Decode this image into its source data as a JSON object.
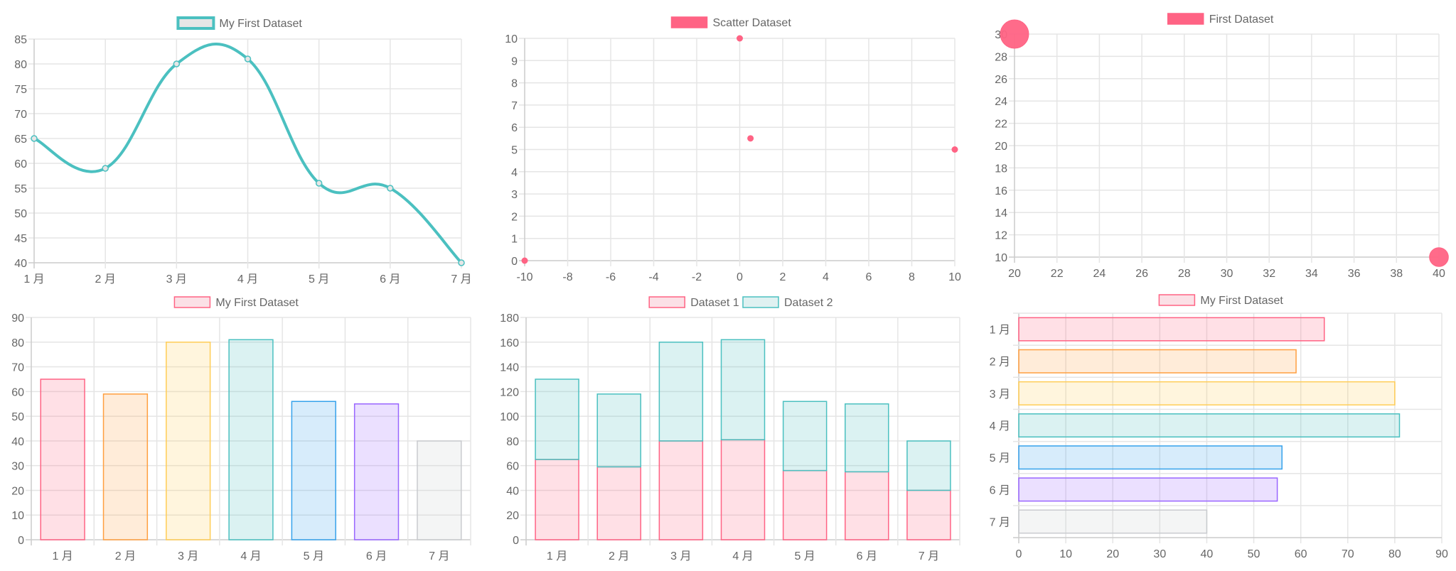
{
  "colors": {
    "red": "#ff6384",
    "orange": "#ff9f40",
    "yellow": "#ffcd56",
    "teal": "#4bc0c0",
    "blue": "#36a2eb",
    "purple": "#9966ff",
    "grey": "#c9cbcf",
    "grid": "#e5e5e5",
    "text": "#666666"
  },
  "chart_data": [
    {
      "type": "line",
      "legend": [
        {
          "label": "My First Dataset",
          "fill": "#e6e6e6",
          "stroke": "#4bc0c0"
        }
      ],
      "categories": [
        "1 月",
        "2 月",
        "3 月",
        "4 月",
        "5 月",
        "6 月",
        "7 月"
      ],
      "series": [
        {
          "name": "My First Dataset",
          "values": [
            65,
            59,
            80,
            81,
            56,
            55,
            40
          ],
          "color": "#4bc0c0"
        }
      ],
      "ylim": [
        40,
        85
      ],
      "yticks": [
        "85",
        "80",
        "75",
        "70",
        "65",
        "60",
        "55",
        "50",
        "45",
        "40"
      ],
      "grid": true,
      "legend_position": "top"
    },
    {
      "type": "scatter",
      "legend": [
        {
          "label": "Scatter Dataset",
          "fill": "#ff6384",
          "stroke": "#ff6384"
        }
      ],
      "series": [
        {
          "name": "Scatter Dataset",
          "points": [
            [
              -10,
              0
            ],
            [
              0,
              10
            ],
            [
              0.5,
              5.5
            ],
            [
              10,
              5
            ]
          ],
          "color": "#ff6384"
        }
      ],
      "xlim": [
        -10,
        10
      ],
      "ylim": [
        0,
        10
      ],
      "xticks": [
        "-10",
        "-8",
        "-6",
        "-4",
        "-2",
        "0",
        "2",
        "4",
        "6",
        "8",
        "10"
      ],
      "yticks": [
        "10",
        "9",
        "8",
        "7",
        "6",
        "5",
        "4",
        "3",
        "2",
        "1",
        "0"
      ],
      "grid": true,
      "legend_position": "top"
    },
    {
      "type": "bubble",
      "legend": [
        {
          "label": "First Dataset",
          "fill": "#ff6384",
          "stroke": "#ff6384"
        }
      ],
      "series": [
        {
          "name": "First Dataset",
          "points": [
            {
              "x": 20,
              "y": 30,
              "r": 15
            },
            {
              "x": 40,
              "y": 10,
              "r": 10
            }
          ],
          "color": "#ff6384"
        }
      ],
      "xlim": [
        20,
        40
      ],
      "ylim": [
        10,
        30
      ],
      "xticks": [
        "20",
        "22",
        "24",
        "26",
        "28",
        "30",
        "32",
        "34",
        "36",
        "38",
        "40"
      ],
      "yticks": [
        "30",
        "28",
        "26",
        "24",
        "22",
        "20",
        "18",
        "16",
        "14",
        "12",
        "10"
      ],
      "grid": true,
      "legend_position": "top"
    },
    {
      "type": "bar",
      "legend": [
        {
          "label": "My First Dataset",
          "fill": "#fbe0e6",
          "stroke": "#ff6384"
        }
      ],
      "categories": [
        "1 月",
        "2 月",
        "3 月",
        "4 月",
        "5 月",
        "6 月",
        "7 月"
      ],
      "series": [
        {
          "name": "My First Dataset",
          "values": [
            65,
            59,
            80,
            81,
            56,
            55,
            40
          ],
          "colors": [
            "#ff6384",
            "#ff9f40",
            "#ffcd56",
            "#4bc0c0",
            "#36a2eb",
            "#9966ff",
            "#c9cbcf"
          ]
        }
      ],
      "ylim": [
        0,
        90
      ],
      "yticks": [
        "90",
        "80",
        "70",
        "60",
        "50",
        "40",
        "30",
        "20",
        "10",
        "0"
      ],
      "grid": true,
      "legend_position": "top"
    },
    {
      "type": "bar",
      "stacked": true,
      "legend": [
        {
          "label": "Dataset 1",
          "fill": "#fbe0e6",
          "stroke": "#ff6384"
        },
        {
          "label": "Dataset 2",
          "fill": "#dff1f1",
          "stroke": "#4bc0c0"
        }
      ],
      "categories": [
        "1 月",
        "2 月",
        "3 月",
        "4 月",
        "5 月",
        "6 月",
        "7 月"
      ],
      "series": [
        {
          "name": "Dataset 1",
          "values": [
            65,
            59,
            80,
            81,
            56,
            55,
            40
          ],
          "color": "#ff6384"
        },
        {
          "name": "Dataset 2",
          "values": [
            65,
            59,
            80,
            81,
            56,
            55,
            40
          ],
          "color": "#4bc0c0"
        }
      ],
      "ylim": [
        0,
        180
      ],
      "yticks": [
        "180",
        "160",
        "140",
        "120",
        "100",
        "80",
        "60",
        "40",
        "20",
        "0"
      ],
      "grid": true,
      "legend_position": "top"
    },
    {
      "type": "horizontal-bar",
      "legend": [
        {
          "label": "My First Dataset",
          "fill": "#fbe0e6",
          "stroke": "#ff6384"
        }
      ],
      "categories": [
        "1 月",
        "2 月",
        "3 月",
        "4 月",
        "5 月",
        "6 月",
        "7 月"
      ],
      "series": [
        {
          "name": "My First Dataset",
          "values": [
            65,
            59,
            80,
            81,
            56,
            55,
            40
          ],
          "colors": [
            "#ff6384",
            "#ff9f40",
            "#ffcd56",
            "#4bc0c0",
            "#36a2eb",
            "#9966ff",
            "#c9cbcf"
          ]
        }
      ],
      "xlim": [
        0,
        90
      ],
      "xticks": [
        "0",
        "10",
        "20",
        "30",
        "40",
        "50",
        "60",
        "70",
        "80",
        "90"
      ],
      "grid": true,
      "legend_position": "top"
    }
  ]
}
